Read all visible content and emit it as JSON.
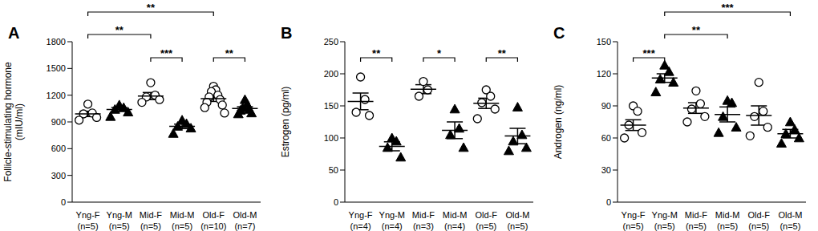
{
  "chart_data": [
    {
      "type": "scatter",
      "title": "A",
      "ylabel": [
        "Follicle-stimulating hormone",
        "(mIU/ml)"
      ],
      "categories": [
        "Yng-F",
        "Yng-M",
        "Mid-F",
        "Mid-M",
        "Old-F",
        "Old-M"
      ],
      "category_notes": [
        "(n=5)",
        "(n=5)",
        "(n=5)",
        "(n=5)",
        "(n=10)",
        "(n=7)"
      ],
      "ylim": [
        0,
        1800
      ],
      "yticks": [
        0,
        300,
        600,
        900,
        1200,
        1500,
        1800
      ],
      "series": [
        {
          "marker": "open_circle",
          "color": "#000000",
          "values": [
            [
              1100,
              1000,
              990,
              950,
              920
            ],
            null,
            [
              1340,
              1200,
              1180,
              1150,
              1120
            ],
            null,
            [
              1300,
              1260,
              1240,
              1200,
              1180,
              1150,
              1120,
              1090,
              1060,
              1000
            ],
            null
          ],
          "mean": [
            990,
            null,
            1190,
            null,
            1160,
            null
          ],
          "sem": [
            30,
            null,
            40,
            null,
            30,
            null
          ]
        },
        {
          "marker": "triangle",
          "color": "#000000",
          "values": [
            null,
            [
              1090,
              1060,
              1040,
              1010,
              960
            ],
            null,
            [
              920,
              880,
              850,
              830,
              770
            ],
            null,
            [
              1150,
              1100,
              1060,
              1040,
              1030,
              1000,
              990
            ]
          ],
          "mean": [
            null,
            1040,
            null,
            850,
            null,
            1050
          ],
          "sem": [
            null,
            22,
            null,
            25,
            null,
            20
          ]
        }
      ],
      "comparisons": [
        {
          "from": "Yng-F",
          "to": "Old-F",
          "label": "**"
        },
        {
          "from": "Yng-F",
          "to": "Mid-F",
          "label": "**"
        },
        {
          "from": "Mid-F",
          "to": "Mid-M",
          "label": "***"
        },
        {
          "from": "Old-F",
          "to": "Old-M",
          "label": "**"
        }
      ]
    },
    {
      "type": "scatter",
      "title": "B",
      "ylabel": [
        "Estrogen (pg/ml)"
      ],
      "categories": [
        "Yng-F",
        "Yng-M",
        "Mid-F",
        "Mid-M",
        "Old-F",
        "Old-M"
      ],
      "category_notes": [
        "(n=4)",
        "(n=4)",
        "(n=3)",
        "(n=4)",
        "(n=5)",
        "(n=5)"
      ],
      "ylim": [
        0,
        250
      ],
      "yticks": [
        0,
        50,
        100,
        150,
        200,
        250
      ],
      "series": [
        {
          "marker": "open_circle",
          "color": "#000000",
          "values": [
            [
              195,
              160,
              140,
              135
            ],
            null,
            [
              188,
              175,
              165
            ],
            null,
            [
              175,
              165,
              155,
              145,
              130
            ],
            null
          ],
          "mean": [
            157,
            null,
            176,
            null,
            154,
            null
          ],
          "sem": [
            13,
            null,
            7,
            null,
            8,
            null
          ]
        },
        {
          "marker": "triangle",
          "color": "#000000",
          "values": [
            null,
            [
              100,
              95,
              85,
              70
            ],
            null,
            [
              145,
              115,
              105,
              85
            ],
            null,
            [
              148,
              105,
              95,
              85,
              80
            ]
          ],
          "mean": [
            null,
            87,
            null,
            112,
            null,
            103
          ],
          "sem": [
            null,
            7,
            null,
            13,
            null,
            12
          ]
        }
      ],
      "comparisons": [
        {
          "from": "Yng-F",
          "to": "Yng-M",
          "label": "**"
        },
        {
          "from": "Mid-F",
          "to": "Mid-M",
          "label": "*"
        },
        {
          "from": "Old-F",
          "to": "Old-M",
          "label": "**"
        }
      ]
    },
    {
      "type": "scatter",
      "title": "C",
      "ylabel": [
        "Androgen (ng/ml)"
      ],
      "categories": [
        "Yng-F",
        "Yng-M",
        "Mid-F",
        "Mid-M",
        "Old-F",
        "Old-M"
      ],
      "category_notes": [
        "(n=5)",
        "(n=5)",
        "(n=5)",
        "(n=5)",
        "(n=5)",
        "(n=5)"
      ],
      "ylim": [
        0,
        150
      ],
      "yticks": [
        0,
        30,
        60,
        90,
        120,
        150
      ],
      "series": [
        {
          "marker": "open_circle",
          "color": "#000000",
          "values": [
            [
              90,
              85,
              72,
              65,
              60
            ],
            null,
            [
              104,
              92,
              87,
              80,
              75
            ],
            null,
            [
              112,
              85,
              80,
              70,
              62
            ],
            null
          ],
          "mean": [
            72,
            null,
            88,
            null,
            81,
            null
          ],
          "sem": [
            5,
            null,
            5,
            null,
            9,
            null
          ]
        },
        {
          "marker": "triangle",
          "color": "#000000",
          "values": [
            null,
            [
              128,
              122,
              115,
              112,
              103
            ],
            null,
            [
              95,
              93,
              80,
              70,
              65
            ],
            null,
            [
              75,
              68,
              64,
              60,
              55
            ]
          ],
          "mean": [
            null,
            116,
            null,
            82,
            null,
            64
          ],
          "sem": [
            null,
            4,
            null,
            7,
            null,
            4
          ]
        }
      ],
      "comparisons": [
        {
          "from": "Yng-F",
          "to": "Yng-M",
          "label": "***"
        },
        {
          "from": "Yng-M",
          "to": "Mid-M",
          "label": "**"
        },
        {
          "from": "Yng-M",
          "to": "Old-M",
          "label": "***"
        }
      ]
    }
  ]
}
